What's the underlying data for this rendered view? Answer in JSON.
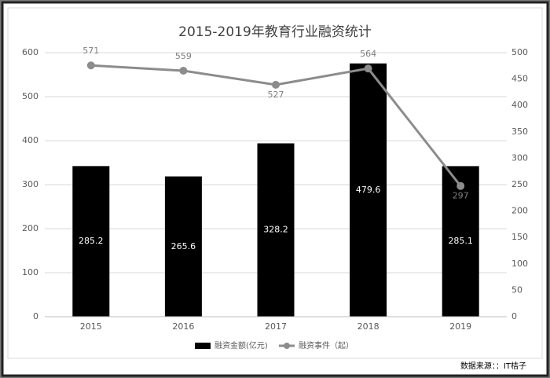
{
  "chart_data": {
    "type": "bar",
    "title": "2015-2019年教育行业融资统计",
    "categories": [
      "2015",
      "2016",
      "2017",
      "2018",
      "2019"
    ],
    "series": [
      {
        "name": "融资金额(亿元)",
        "type": "bar",
        "color": "#000000",
        "axis": "y2",
        "values": [
          285.2,
          265.6,
          328.2,
          479.6,
          285.1
        ]
      },
      {
        "name": "融资事件（起）",
        "type": "line",
        "color": "#8c8c8c",
        "values": [
          571,
          559,
          527,
          564,
          297
        ]
      }
    ],
    "ylim": [
      0,
      600
    ],
    "yticks": [
      0,
      100,
      200,
      300,
      400,
      500,
      600
    ],
    "y2lim": [
      0,
      500
    ],
    "y2ticks": [
      0,
      50,
      100,
      150,
      200,
      250,
      300,
      350,
      400,
      450,
      500
    ],
    "grid": true,
    "legend": "bottom",
    "source": "数据来源：：IT桔子"
  }
}
